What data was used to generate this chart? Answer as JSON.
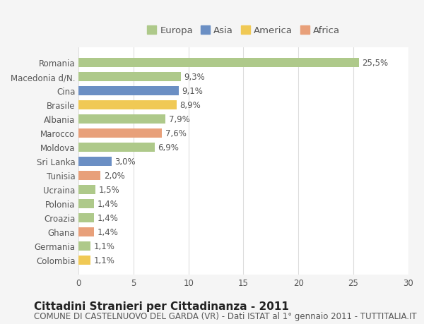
{
  "categories": [
    "Romania",
    "Macedonia d/N.",
    "Cina",
    "Brasile",
    "Albania",
    "Marocco",
    "Moldova",
    "Sri Lanka",
    "Tunisia",
    "Ucraina",
    "Polonia",
    "Croazia",
    "Ghana",
    "Germania",
    "Colombia"
  ],
  "values": [
    25.5,
    9.3,
    9.1,
    8.9,
    7.9,
    7.6,
    6.9,
    3.0,
    2.0,
    1.5,
    1.4,
    1.4,
    1.4,
    1.1,
    1.1
  ],
  "colors": [
    "#aec98a",
    "#aec98a",
    "#6b8fc4",
    "#f0c955",
    "#aec98a",
    "#e8a07a",
    "#aec98a",
    "#6b8fc4",
    "#e8a07a",
    "#aec98a",
    "#aec98a",
    "#aec98a",
    "#e8a07a",
    "#aec98a",
    "#f0c955"
  ],
  "labels": [
    "25,5%",
    "9,3%",
    "9,1%",
    "8,9%",
    "7,9%",
    "7,6%",
    "6,9%",
    "3,0%",
    "2,0%",
    "1,5%",
    "1,4%",
    "1,4%",
    "1,4%",
    "1,1%",
    "1,1%"
  ],
  "legend_labels": [
    "Europa",
    "Asia",
    "America",
    "Africa"
  ],
  "legend_colors": [
    "#aec98a",
    "#6b8fc4",
    "#f0c955",
    "#e8a07a"
  ],
  "xlim": [
    0,
    30
  ],
  "xticks": [
    0,
    5,
    10,
    15,
    20,
    25,
    30
  ],
  "title": "Cittadini Stranieri per Cittadinanza - 2011",
  "subtitle": "COMUNE DI CASTELNUOVO DEL GARDA (VR) - Dati ISTAT al 1° gennaio 2011 - TUTTITALIA.IT",
  "background_color": "#f5f5f5",
  "plot_background_color": "#ffffff",
  "grid_color": "#dddddd",
  "bar_height": 0.65,
  "title_fontsize": 11,
  "subtitle_fontsize": 8.5,
  "label_fontsize": 8.5,
  "tick_fontsize": 8.5,
  "legend_fontsize": 9.5
}
